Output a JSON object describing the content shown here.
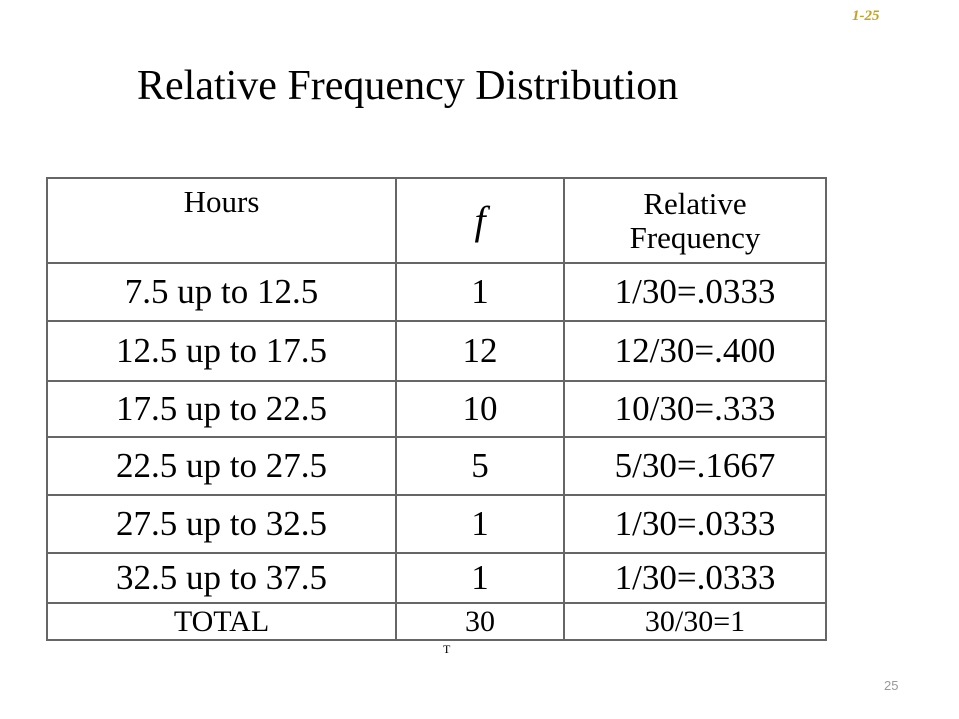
{
  "slide_tag": "1-25",
  "title": "Relative Frequency Distribution",
  "table": {
    "headers": {
      "hours": "Hours",
      "f": "f",
      "relative_line1": "Relative",
      "relative_line2": "Frequency"
    },
    "rows": [
      {
        "hours": "7.5 up to 12.5",
        "f": "1",
        "rel": "1/30=.0333"
      },
      {
        "hours": "12.5 up to 17.5",
        "f": "12",
        "rel": "12/30=.400"
      },
      {
        "hours": "17.5 up to 22.5",
        "f": "10",
        "rel": "10/30=.333"
      },
      {
        "hours": "22.5 up to 27.5",
        "f": "5",
        "rel": "5/30=.1667"
      },
      {
        "hours": "27.5 up to 32.5",
        "f": "1",
        "rel": "1/30=.0333"
      },
      {
        "hours": "32.5 up to 37.5",
        "f": "1",
        "rel": "1/30=.0333"
      }
    ],
    "total": {
      "label": "TOTAL",
      "f": "30",
      "rel": "30/30=1"
    }
  },
  "tiny_mark": "T",
  "page_number": "25"
}
